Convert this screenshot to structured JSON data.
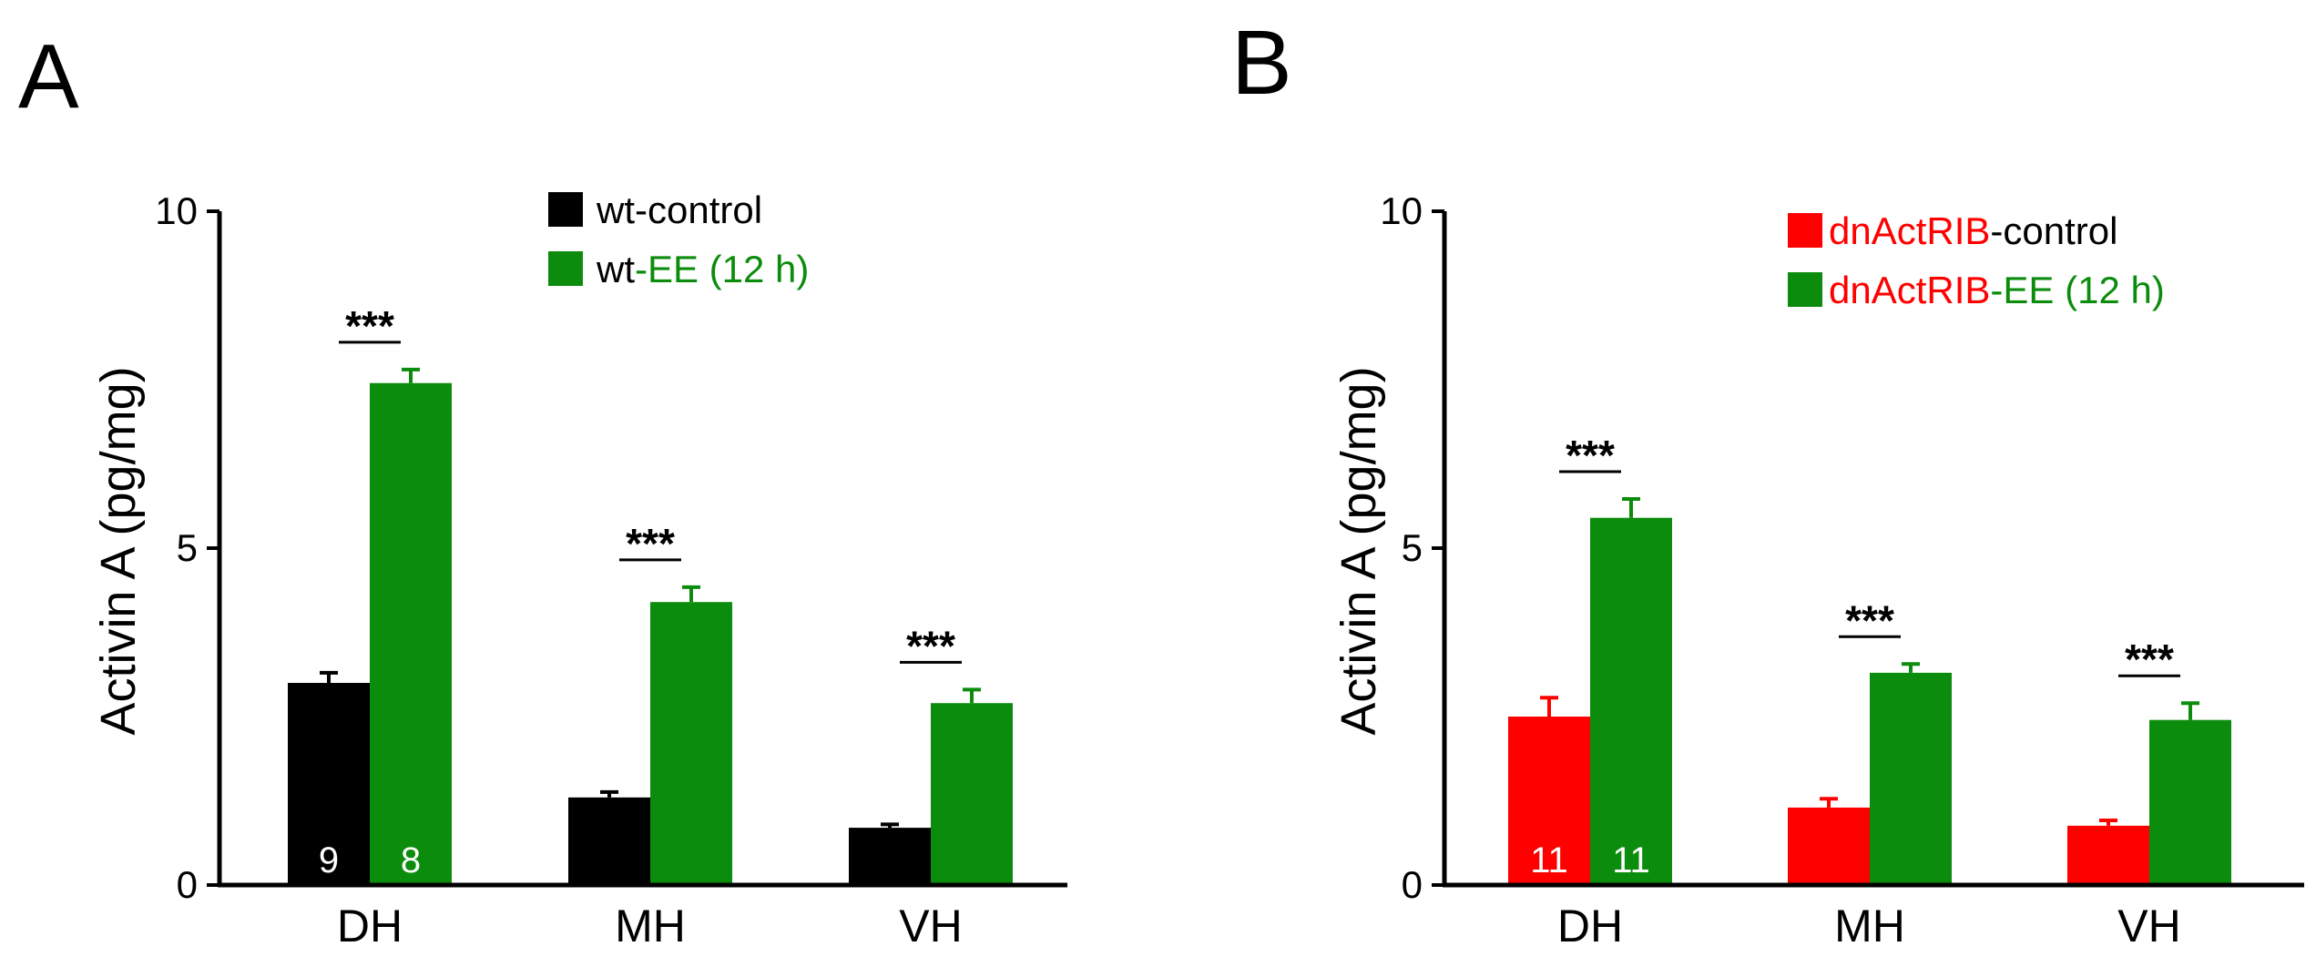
{
  "colors": {
    "black": "#000000",
    "green": "#0c8c0c",
    "red": "#ff0000",
    "white": "#ffffff"
  },
  "chart_data": [
    {
      "panel": "A",
      "type": "bar",
      "categories": [
        "DH",
        "MH",
        "VH"
      ],
      "ylabel": "Activin A (pg/mg)",
      "ylim": [
        0,
        10
      ],
      "yticks": [
        0,
        5,
        10
      ],
      "series": [
        {
          "name": "wt-control",
          "legend": [
            {
              "text": "wt-control",
              "color": "black"
            }
          ],
          "color": "black",
          "values": [
            3.0,
            1.3,
            0.85
          ],
          "errors": [
            0.15,
            0.08,
            0.05
          ],
          "n": [
            "9",
            "",
            ""
          ]
        },
        {
          "name": "wt-EE (12 h)",
          "legend": [
            {
              "text": "wt",
              "color": "black"
            },
            {
              "text": "-EE (12 h)",
              "color": "green"
            }
          ],
          "color": "green",
          "values": [
            7.45,
            4.2,
            2.7
          ],
          "errors": [
            0.2,
            0.22,
            0.2
          ],
          "n": [
            "8",
            "",
            ""
          ]
        }
      ],
      "significance": [
        "***",
        "***",
        "***"
      ]
    },
    {
      "panel": "B",
      "type": "bar",
      "categories": [
        "DH",
        "MH",
        "VH"
      ],
      "ylabel": "Activin A (pg/mg)",
      "ylim": [
        0,
        10
      ],
      "yticks": [
        0,
        5,
        10
      ],
      "series": [
        {
          "name": "dnActRIB-control",
          "legend": [
            {
              "text": "dnActRIB",
              "color": "red"
            },
            {
              "text": "-control",
              "color": "black"
            }
          ],
          "color": "red",
          "values": [
            2.5,
            1.15,
            0.88
          ],
          "errors": [
            0.28,
            0.13,
            0.08
          ],
          "n": [
            "11",
            "",
            ""
          ]
        },
        {
          "name": "dnActRIB-EE (12 h)",
          "legend": [
            {
              "text": "dnActRIB",
              "color": "red"
            },
            {
              "text": "-EE (12 h)",
              "color": "green"
            }
          ],
          "color": "green",
          "values": [
            5.45,
            3.15,
            2.45
          ],
          "errors": [
            0.28,
            0.13,
            0.25
          ],
          "n": [
            "11",
            "",
            ""
          ]
        }
      ],
      "significance": [
        "***",
        "***",
        "***"
      ]
    }
  ]
}
